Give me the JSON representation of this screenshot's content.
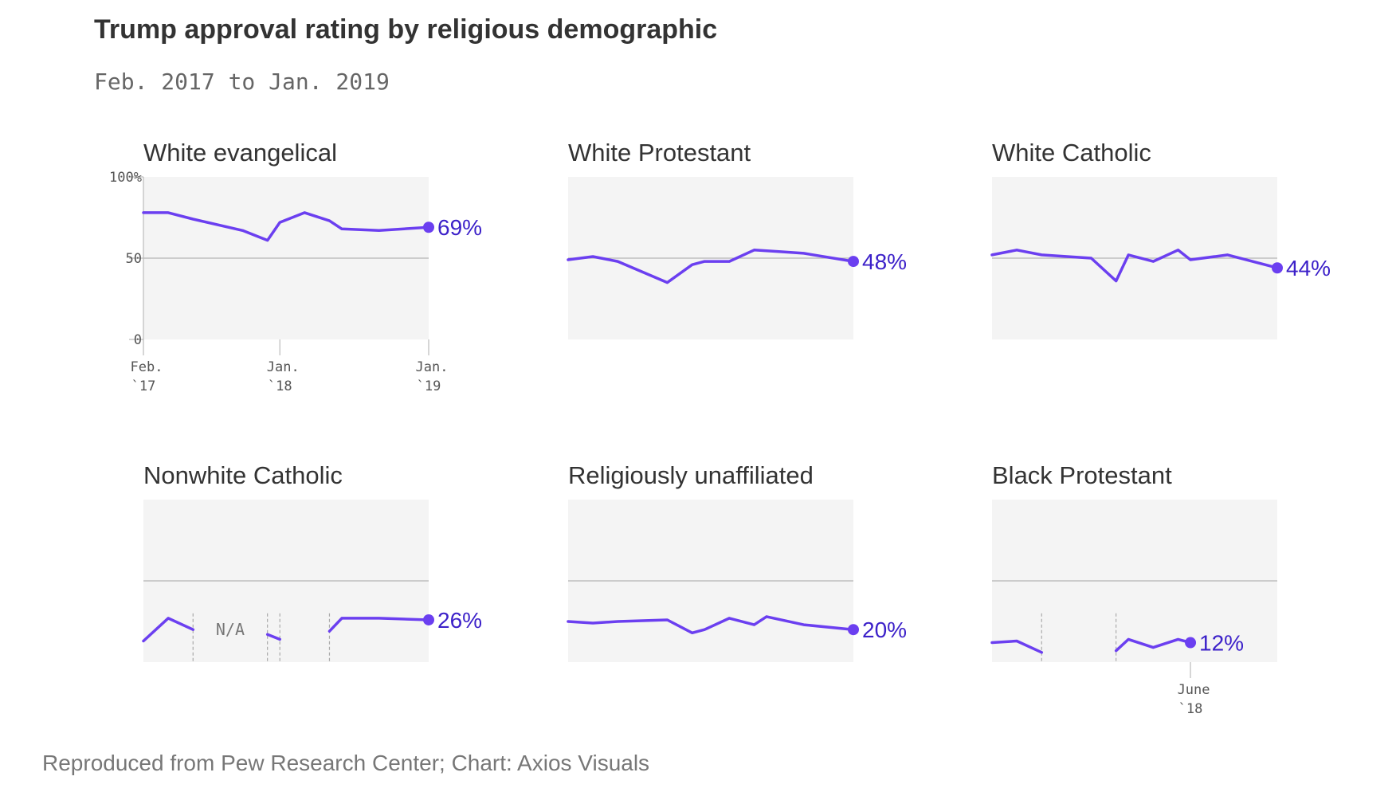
{
  "title": "Trump approval rating by religious demographic",
  "subtitle": "Feb. 2017 to Jan. 2019",
  "source": "Reproduced from Pew Research Center; Chart: Axios Visuals",
  "colors": {
    "line": "#6b3ff0",
    "label": "#3c21c9",
    "panel": "#f4f4f4",
    "gridline": "#b5b5b5"
  },
  "chart_data": [
    {
      "type": "line",
      "title": "White evangelical",
      "x_range": [
        0,
        23
      ],
      "ylim": [
        0,
        100
      ],
      "yticks": [
        {
          "value": 100,
          "label": "100%"
        },
        {
          "value": 50,
          "label": "50"
        },
        {
          "value": 0,
          "label": "0"
        }
      ],
      "xticks": [
        {
          "x": 0,
          "label1": "Feb.",
          "label2": "`17"
        },
        {
          "x": 11,
          "label1": "Jan.",
          "label2": "`18"
        },
        {
          "x": 23,
          "label1": "Jan.",
          "label2": "`19"
        }
      ],
      "segments": [
        [
          [
            0,
            78
          ],
          [
            2,
            78
          ],
          [
            4,
            74
          ],
          [
            8,
            67
          ],
          [
            10,
            61
          ],
          [
            11,
            72
          ],
          [
            13,
            78
          ],
          [
            15,
            73
          ],
          [
            16,
            68
          ],
          [
            19,
            67
          ],
          [
            23,
            69
          ]
        ]
      ],
      "last_value": 69,
      "last_label": "69%"
    },
    {
      "type": "line",
      "title": "White Protestant",
      "x_range": [
        0,
        23
      ],
      "ylim": [
        0,
        100
      ],
      "segments": [
        [
          [
            0,
            49
          ],
          [
            2,
            51
          ],
          [
            4,
            48
          ],
          [
            8,
            35
          ],
          [
            10,
            46
          ],
          [
            11,
            48
          ],
          [
            13,
            48
          ],
          [
            15,
            55
          ],
          [
            17,
            54
          ],
          [
            19,
            53
          ],
          [
            23,
            48
          ]
        ]
      ],
      "last_value": 48,
      "last_label": "48%"
    },
    {
      "type": "line",
      "title": "White Catholic",
      "x_range": [
        0,
        23
      ],
      "ylim": [
        0,
        100
      ],
      "segments": [
        [
          [
            0,
            52
          ],
          [
            2,
            55
          ],
          [
            4,
            52
          ],
          [
            8,
            50
          ],
          [
            10,
            36
          ],
          [
            11,
            52
          ],
          [
            13,
            48
          ],
          [
            15,
            55
          ],
          [
            16,
            49
          ],
          [
            19,
            52
          ],
          [
            23,
            44
          ]
        ]
      ],
      "last_value": 44,
      "last_label": "44%"
    },
    {
      "type": "line",
      "title": "Nonwhite Catholic",
      "x_range": [
        0,
        23
      ],
      "ylim": [
        0,
        100
      ],
      "segments": [
        [
          [
            0,
            13
          ],
          [
            2,
            27
          ],
          [
            4,
            20
          ]
        ],
        [
          [
            10,
            17
          ],
          [
            11,
            14
          ]
        ],
        [
          [
            15,
            19
          ],
          [
            16,
            27
          ],
          [
            19,
            27
          ],
          [
            23,
            26
          ]
        ]
      ],
      "gaps": [
        4,
        10,
        11,
        15
      ],
      "na_label": "N/A",
      "last_value": 26,
      "last_label": "26%"
    },
    {
      "type": "line",
      "title": "Religiously unaffiliated",
      "x_range": [
        0,
        23
      ],
      "ylim": [
        0,
        100
      ],
      "segments": [
        [
          [
            0,
            25
          ],
          [
            2,
            24
          ],
          [
            4,
            25
          ],
          [
            8,
            26
          ],
          [
            10,
            18
          ],
          [
            11,
            20
          ],
          [
            13,
            27
          ],
          [
            15,
            23
          ],
          [
            16,
            28
          ],
          [
            19,
            23
          ],
          [
            23,
            20
          ]
        ]
      ],
      "last_value": 20,
      "last_label": "20%"
    },
    {
      "type": "line",
      "title": "Black Protestant",
      "x_range": [
        0,
        23
      ],
      "ylim": [
        0,
        100
      ],
      "xticks": [
        {
          "x": 16,
          "label1": "June",
          "label2": "`18"
        }
      ],
      "segments": [
        [
          [
            0,
            12
          ],
          [
            2,
            13
          ],
          [
            4,
            6
          ]
        ],
        [
          [
            10,
            7
          ],
          [
            11,
            14
          ],
          [
            13,
            9
          ],
          [
            15,
            14
          ],
          [
            16,
            12
          ]
        ]
      ],
      "gaps": [
        4,
        10
      ],
      "last_value": 12,
      "last_label": "12%"
    }
  ]
}
